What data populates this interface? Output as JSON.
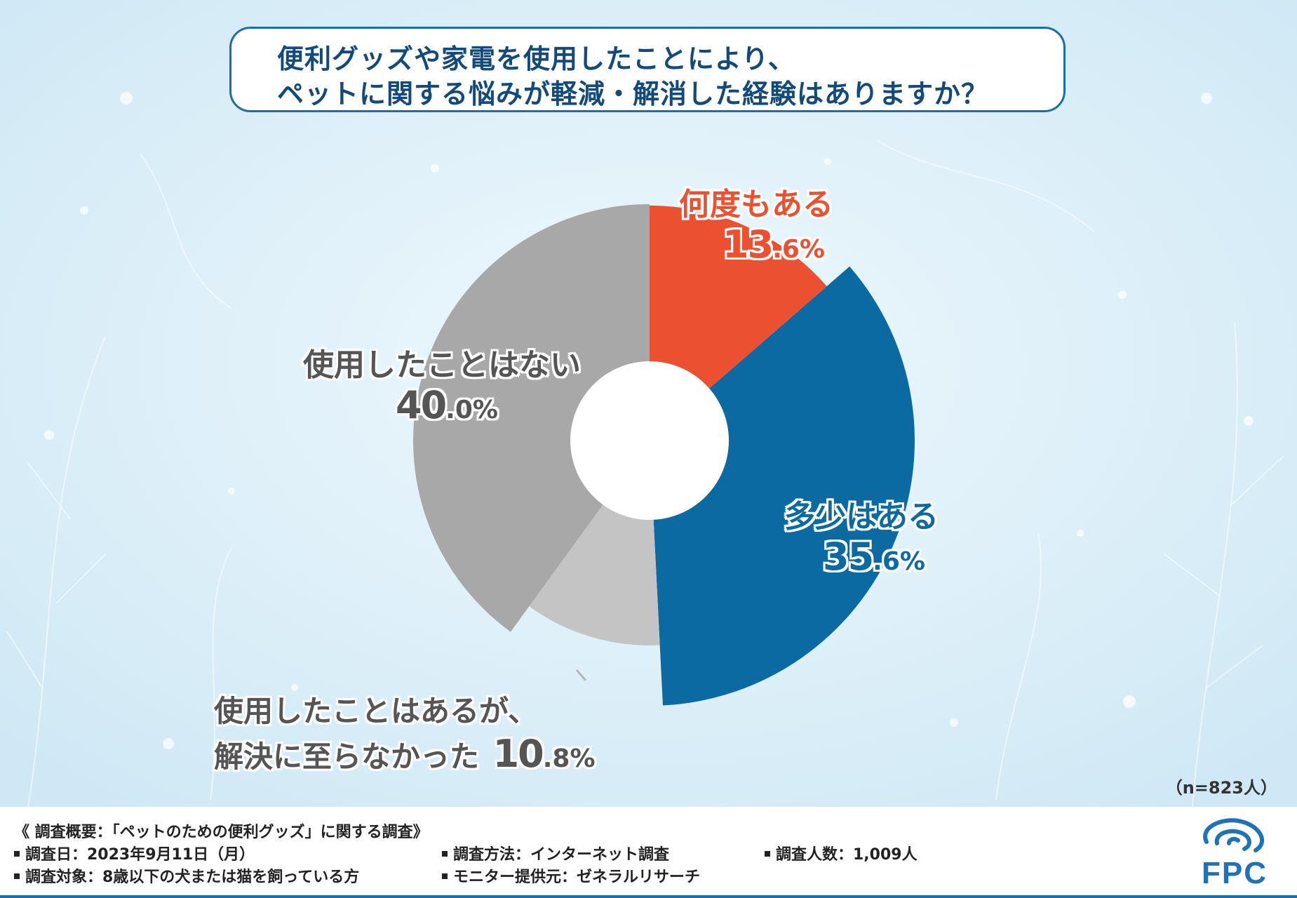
{
  "title": {
    "line1": "便利グッズや家電を使用したことにより、",
    "line2": "ペットに関する悩みが軽減・解消した経験はありますか？"
  },
  "chart_data": {
    "type": "pie",
    "title": "便利グッズや家電を使用したことにより、ペットに関する悩みが軽減・解消した経験はありますか？",
    "categories": [
      "何度もある",
      "多少はある",
      "使用したことはあるが、解決に至らなかった",
      "使用したことはない"
    ],
    "values": [
      13.6,
      35.6,
      10.8,
      40.0
    ],
    "unit": "%",
    "donut": true,
    "colors": [
      "#eb5130",
      "#0b6aa2",
      "#c4c4c4",
      "#a8a8a8"
    ],
    "labels": {
      "frequent": {
        "name": "何度もある",
        "value_int": "13",
        "value_dec": ".6%"
      },
      "some": {
        "name": "多少はある",
        "value_int": "35",
        "value_dec": ".6%"
      },
      "unresolved": {
        "name_line1": "使用したことはあるが、",
        "name_line2": "解決に至らなかった",
        "value_int": "10",
        "value_dec": ".8%"
      },
      "never": {
        "name": "使用したことはない",
        "value_int": "40",
        "value_dec": ".0%"
      }
    },
    "n_note": "（n=823人）"
  },
  "footer": {
    "summary": "《 調査概要：「ペットのための便利グッズ」に関する調査》",
    "date": "調査日：2023年9月11日（月）",
    "method": "調査方法：インターネット調査",
    "count": "調査人数：1,009人",
    "target": "調査対象：8歳以下の犬または猫を飼っている方",
    "provider": "モニター提供元：ゼネラルリサーチ"
  },
  "logo": {
    "text": "FPC"
  },
  "colors": {
    "accent": "#1c6fa6",
    "title_text": "#124a7c",
    "background": "#d9eef8"
  }
}
